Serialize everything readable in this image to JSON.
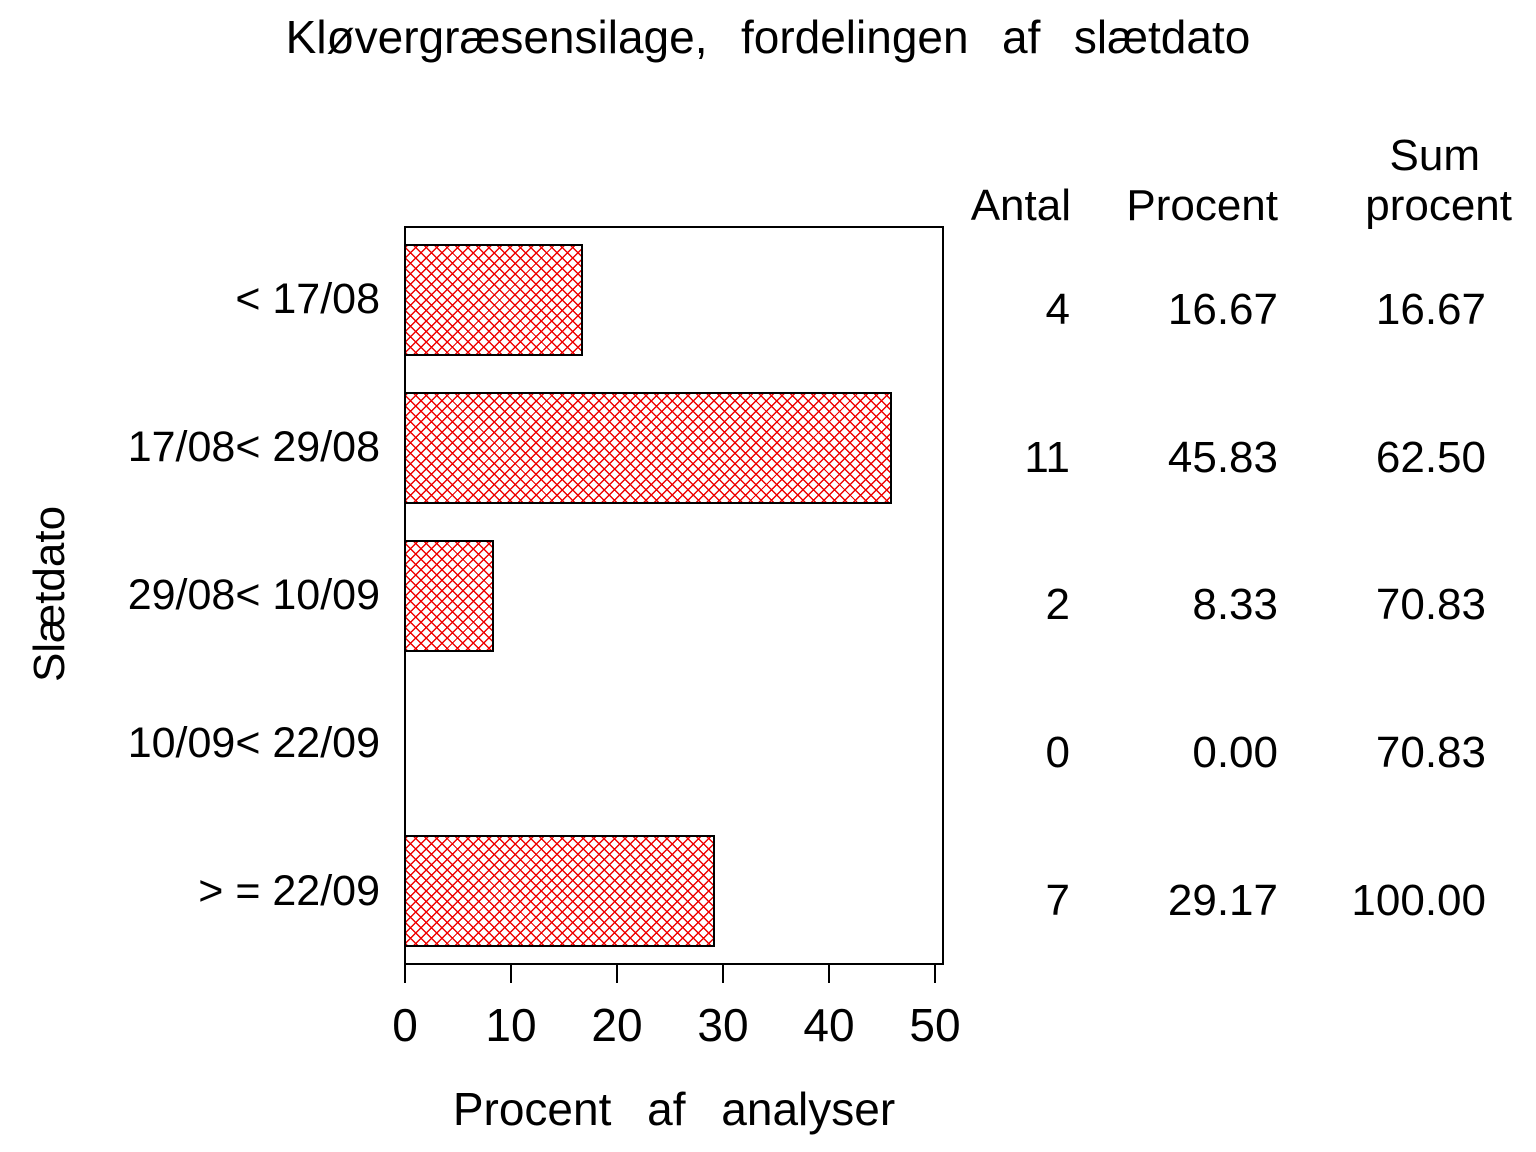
{
  "chart_data": {
    "type": "bar",
    "orientation": "horizontal",
    "title": "Kløvergræsensilage, fordelingen af slætdato",
    "xlabel": "Procent af analyser",
    "ylabel": "Slætdato",
    "categories": [
      "< 17/08",
      "17/08< 29/08",
      "29/08< 10/09",
      "10/09< 22/09",
      "> = 22/09"
    ],
    "values": [
      16.67,
      45.83,
      8.33,
      0,
      29.17
    ],
    "xlim": [
      0,
      50
    ],
    "xticks": [
      0,
      10,
      20,
      30,
      40,
      50
    ],
    "grid": "off",
    "bar_color": "#ee0000",
    "hatch": "diagonal-crosshatch",
    "table": {
      "columns": [
        "Antal",
        "Procent",
        "Sum procent"
      ],
      "header_line1": "Sum",
      "header_line2": [
        "Antal",
        "Procent",
        "procent"
      ],
      "rows": [
        [
          "4",
          "16.67",
          "16.67"
        ],
        [
          "11",
          "45.83",
          "62.50"
        ],
        [
          "2",
          "8.33",
          "70.83"
        ],
        [
          "0",
          "0.00",
          "70.83"
        ],
        [
          "7",
          "29.17",
          "100.00"
        ]
      ]
    }
  }
}
